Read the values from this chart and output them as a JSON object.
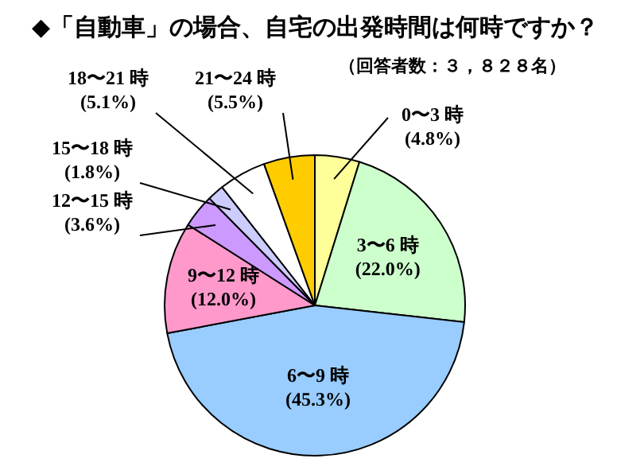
{
  "chart_data": {
    "type": "pie",
    "title": "◆「自動車」の場合、自宅の出発時間は何時ですか？",
    "subtitle": "（回答者数：３，８２８名）",
    "categories": [
      "0〜3 時",
      "3〜6 時",
      "6〜9 時",
      "9〜12 時",
      "12〜15 時",
      "15〜18 時",
      "18〜21 時",
      "21〜24 時"
    ],
    "values": [
      4.8,
      22.0,
      45.3,
      12.0,
      3.6,
      1.8,
      5.1,
      5.5
    ],
    "value_labels": [
      "(4.8%)",
      "(22.0%)",
      "(45.3%)",
      "(12.0%)",
      "(3.6%)",
      "(1.8%)",
      "(5.1%)",
      "(5.5%)"
    ],
    "colors": [
      "#ffff99",
      "#ccffcc",
      "#99ccff",
      "#ff99cc",
      "#cc99ff",
      "#ccccff",
      "#ffffff",
      "#ffcc00"
    ],
    "legend": false
  }
}
